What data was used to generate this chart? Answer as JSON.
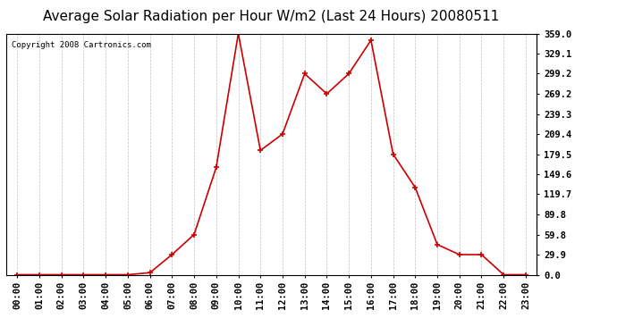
{
  "title": "Average Solar Radiation per Hour W/m2 (Last 24 Hours) 20080511",
  "copyright": "Copyright 2008 Cartronics.com",
  "hours": [
    "00:00",
    "01:00",
    "02:00",
    "03:00",
    "04:00",
    "05:00",
    "06:00",
    "07:00",
    "08:00",
    "09:00",
    "10:00",
    "11:00",
    "12:00",
    "13:00",
    "14:00",
    "15:00",
    "16:00",
    "17:00",
    "18:00",
    "19:00",
    "20:00",
    "21:00",
    "22:00",
    "23:00"
  ],
  "values": [
    0.0,
    0.0,
    0.0,
    0.0,
    0.0,
    0.0,
    3.0,
    29.9,
    59.8,
    159.7,
    359.0,
    185.0,
    209.4,
    299.2,
    269.2,
    299.2,
    349.0,
    179.5,
    129.8,
    44.9,
    29.9,
    29.9,
    0.0,
    0.0
  ],
  "line_color": "#cc0000",
  "marker_color": "#cc0000",
  "bg_color": "#ffffff",
  "grid_color": "#b0b0b0",
  "yticks": [
    0.0,
    29.9,
    59.8,
    89.8,
    119.7,
    149.6,
    179.5,
    209.4,
    239.3,
    269.2,
    299.2,
    329.1,
    359.0
  ],
  "ylim": [
    0.0,
    359.0
  ],
  "title_fontsize": 11,
  "copyright_fontsize": 6.5,
  "tick_fontsize": 7.5
}
